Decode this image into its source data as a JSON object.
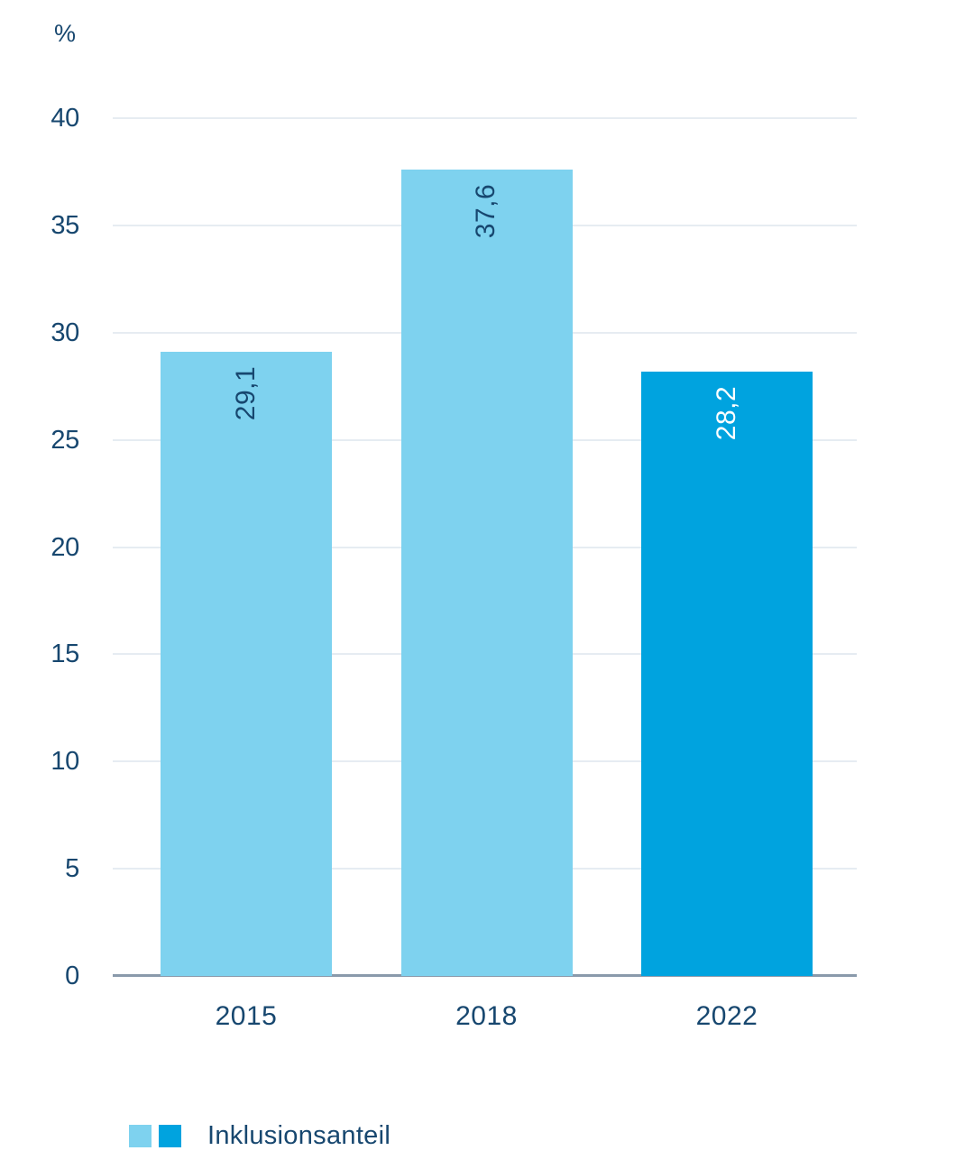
{
  "chart_data": {
    "type": "bar",
    "title": "",
    "unit_label": "%",
    "categories": [
      "2015",
      "2018",
      "2022"
    ],
    "values": [
      29.1,
      37.6,
      28.2
    ],
    "value_labels": [
      "29,1",
      "37,6",
      "28,2"
    ],
    "y_ticks": [
      40,
      35,
      30,
      25,
      20,
      15,
      10,
      5,
      0
    ],
    "ylim": [
      0,
      40
    ],
    "grid": "horizontal-light",
    "legend_position": "bottom-left",
    "bar_colors": [
      "#7ED2EF",
      "#7ED2EF",
      "#00A3DF"
    ],
    "value_label_colors": [
      "#17476F",
      "#17476F",
      "#FFFFFF"
    ],
    "legend": {
      "label": "Inklusionsanteil",
      "swatch_colors": [
        "#7ED2EF",
        "#00A3DF"
      ]
    },
    "colors": {
      "text": "#17476F",
      "gridline": "#E6ECF2",
      "axis_line": "#8A9AAB",
      "background": "#FFFFFF"
    }
  }
}
